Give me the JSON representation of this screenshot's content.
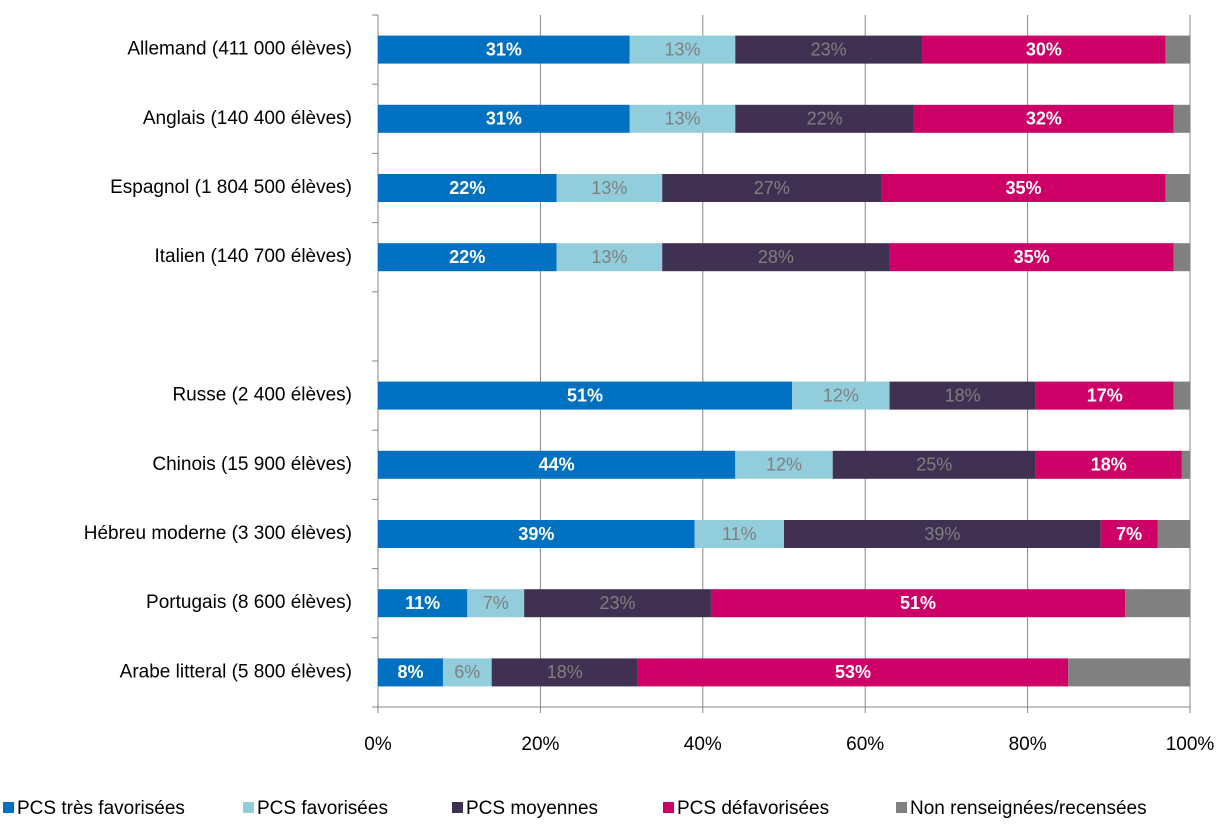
{
  "chart_data": {
    "type": "stacked_bar_horizontal",
    "categories": [
      "Allemand (411 000 élèves)",
      "Anglais (140 400 élèves)",
      "Espagnol (1 804 500 élèves)",
      "Italien (140 700 élèves)",
      null,
      "Russe (2 400 élèves)",
      "Chinois (15 900 élèves)",
      "Hébreu moderne (3 300 élèves)",
      "Portugais (8 600 élèves)",
      "Arabe litteral (5 800 élèves)"
    ],
    "series": [
      {
        "name": "PCS très favorisées",
        "color": "#0070c0",
        "label_color": "#ffffff",
        "label_bold": true,
        "values": [
          31,
          31,
          22,
          22,
          null,
          51,
          44,
          39,
          11,
          8
        ],
        "value_labels": [
          "31%",
          "31%",
          "22%",
          "22%",
          null,
          "51%",
          "44%",
          "39%",
          "11%",
          "8%"
        ]
      },
      {
        "name": "PCS favorisées",
        "color": "#92cddc",
        "label_color": "#7f7f7f",
        "label_bold": false,
        "values": [
          13,
          13,
          13,
          13,
          null,
          12,
          12,
          11,
          7,
          6
        ],
        "value_labels": [
          "13%",
          "13%",
          "13%",
          "13%",
          null,
          "12%",
          "12%",
          "11%",
          "7%",
          "6%"
        ]
      },
      {
        "name": "PCS moyennes",
        "color": "#403152",
        "label_color": "#7f7f7f",
        "label_bold": false,
        "values": [
          23,
          22,
          27,
          28,
          null,
          18,
          25,
          39,
          23,
          18
        ],
        "value_labels": [
          "23%",
          "22%",
          "27%",
          "28%",
          null,
          "18%",
          "25%",
          "39%",
          "23%",
          "18%"
        ]
      },
      {
        "name": "PCS défavorisées",
        "color": "#cc0066",
        "label_color": "#ffffff",
        "label_bold": true,
        "values": [
          30,
          32,
          35,
          35,
          null,
          17,
          18,
          7,
          51,
          53
        ],
        "value_labels": [
          "30%",
          "32%",
          "35%",
          "35%",
          null,
          "17%",
          "18%",
          "7%",
          "51%",
          "53%"
        ]
      },
      {
        "name": "Non renseignées/recensées",
        "color": "#808080",
        "values": [
          3,
          2,
          3,
          2,
          null,
          2,
          1,
          4,
          8,
          15
        ]
      }
    ],
    "xlim": [
      0,
      100
    ],
    "xticks": [
      {
        "value": 0,
        "label": "0%"
      },
      {
        "value": 20,
        "label": "20%"
      },
      {
        "value": 40,
        "label": "40%"
      },
      {
        "value": 60,
        "label": "60%"
      },
      {
        "value": 80,
        "label": "80%"
      },
      {
        "value": 100,
        "label": "100%"
      }
    ],
    "grid": true,
    "legend": "bottom"
  }
}
